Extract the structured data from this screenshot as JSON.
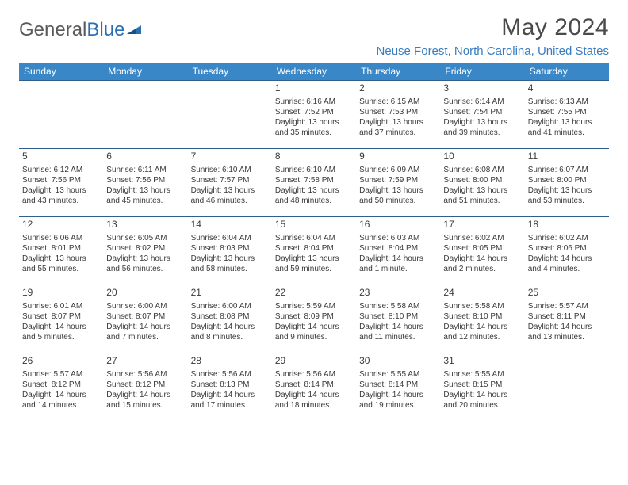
{
  "logo": {
    "text_a": "General",
    "text_b": "Blue"
  },
  "title": "May 2024",
  "location": "Neuse Forest, North Carolina, United States",
  "day_headers": [
    "Sunday",
    "Monday",
    "Tuesday",
    "Wednesday",
    "Thursday",
    "Friday",
    "Saturday"
  ],
  "colors": {
    "header_bg": "#3a87c8",
    "border": "#2f5e8f",
    "location": "#3a7dbf",
    "text": "#3a3a3a"
  },
  "weeks": [
    [
      null,
      null,
      null,
      {
        "n": "1",
        "sr": "Sunrise: 6:16 AM",
        "ss": "Sunset: 7:52 PM",
        "dl1": "Daylight: 13 hours",
        "dl2": "and 35 minutes."
      },
      {
        "n": "2",
        "sr": "Sunrise: 6:15 AM",
        "ss": "Sunset: 7:53 PM",
        "dl1": "Daylight: 13 hours",
        "dl2": "and 37 minutes."
      },
      {
        "n": "3",
        "sr": "Sunrise: 6:14 AM",
        "ss": "Sunset: 7:54 PM",
        "dl1": "Daylight: 13 hours",
        "dl2": "and 39 minutes."
      },
      {
        "n": "4",
        "sr": "Sunrise: 6:13 AM",
        "ss": "Sunset: 7:55 PM",
        "dl1": "Daylight: 13 hours",
        "dl2": "and 41 minutes."
      }
    ],
    [
      {
        "n": "5",
        "sr": "Sunrise: 6:12 AM",
        "ss": "Sunset: 7:56 PM",
        "dl1": "Daylight: 13 hours",
        "dl2": "and 43 minutes."
      },
      {
        "n": "6",
        "sr": "Sunrise: 6:11 AM",
        "ss": "Sunset: 7:56 PM",
        "dl1": "Daylight: 13 hours",
        "dl2": "and 45 minutes."
      },
      {
        "n": "7",
        "sr": "Sunrise: 6:10 AM",
        "ss": "Sunset: 7:57 PM",
        "dl1": "Daylight: 13 hours",
        "dl2": "and 46 minutes."
      },
      {
        "n": "8",
        "sr": "Sunrise: 6:10 AM",
        "ss": "Sunset: 7:58 PM",
        "dl1": "Daylight: 13 hours",
        "dl2": "and 48 minutes."
      },
      {
        "n": "9",
        "sr": "Sunrise: 6:09 AM",
        "ss": "Sunset: 7:59 PM",
        "dl1": "Daylight: 13 hours",
        "dl2": "and 50 minutes."
      },
      {
        "n": "10",
        "sr": "Sunrise: 6:08 AM",
        "ss": "Sunset: 8:00 PM",
        "dl1": "Daylight: 13 hours",
        "dl2": "and 51 minutes."
      },
      {
        "n": "11",
        "sr": "Sunrise: 6:07 AM",
        "ss": "Sunset: 8:00 PM",
        "dl1": "Daylight: 13 hours",
        "dl2": "and 53 minutes."
      }
    ],
    [
      {
        "n": "12",
        "sr": "Sunrise: 6:06 AM",
        "ss": "Sunset: 8:01 PM",
        "dl1": "Daylight: 13 hours",
        "dl2": "and 55 minutes."
      },
      {
        "n": "13",
        "sr": "Sunrise: 6:05 AM",
        "ss": "Sunset: 8:02 PM",
        "dl1": "Daylight: 13 hours",
        "dl2": "and 56 minutes."
      },
      {
        "n": "14",
        "sr": "Sunrise: 6:04 AM",
        "ss": "Sunset: 8:03 PM",
        "dl1": "Daylight: 13 hours",
        "dl2": "and 58 minutes."
      },
      {
        "n": "15",
        "sr": "Sunrise: 6:04 AM",
        "ss": "Sunset: 8:04 PM",
        "dl1": "Daylight: 13 hours",
        "dl2": "and 59 minutes."
      },
      {
        "n": "16",
        "sr": "Sunrise: 6:03 AM",
        "ss": "Sunset: 8:04 PM",
        "dl1": "Daylight: 14 hours",
        "dl2": "and 1 minute."
      },
      {
        "n": "17",
        "sr": "Sunrise: 6:02 AM",
        "ss": "Sunset: 8:05 PM",
        "dl1": "Daylight: 14 hours",
        "dl2": "and 2 minutes."
      },
      {
        "n": "18",
        "sr": "Sunrise: 6:02 AM",
        "ss": "Sunset: 8:06 PM",
        "dl1": "Daylight: 14 hours",
        "dl2": "and 4 minutes."
      }
    ],
    [
      {
        "n": "19",
        "sr": "Sunrise: 6:01 AM",
        "ss": "Sunset: 8:07 PM",
        "dl1": "Daylight: 14 hours",
        "dl2": "and 5 minutes."
      },
      {
        "n": "20",
        "sr": "Sunrise: 6:00 AM",
        "ss": "Sunset: 8:07 PM",
        "dl1": "Daylight: 14 hours",
        "dl2": "and 7 minutes."
      },
      {
        "n": "21",
        "sr": "Sunrise: 6:00 AM",
        "ss": "Sunset: 8:08 PM",
        "dl1": "Daylight: 14 hours",
        "dl2": "and 8 minutes."
      },
      {
        "n": "22",
        "sr": "Sunrise: 5:59 AM",
        "ss": "Sunset: 8:09 PM",
        "dl1": "Daylight: 14 hours",
        "dl2": "and 9 minutes."
      },
      {
        "n": "23",
        "sr": "Sunrise: 5:58 AM",
        "ss": "Sunset: 8:10 PM",
        "dl1": "Daylight: 14 hours",
        "dl2": "and 11 minutes."
      },
      {
        "n": "24",
        "sr": "Sunrise: 5:58 AM",
        "ss": "Sunset: 8:10 PM",
        "dl1": "Daylight: 14 hours",
        "dl2": "and 12 minutes."
      },
      {
        "n": "25",
        "sr": "Sunrise: 5:57 AM",
        "ss": "Sunset: 8:11 PM",
        "dl1": "Daylight: 14 hours",
        "dl2": "and 13 minutes."
      }
    ],
    [
      {
        "n": "26",
        "sr": "Sunrise: 5:57 AM",
        "ss": "Sunset: 8:12 PM",
        "dl1": "Daylight: 14 hours",
        "dl2": "and 14 minutes."
      },
      {
        "n": "27",
        "sr": "Sunrise: 5:56 AM",
        "ss": "Sunset: 8:12 PM",
        "dl1": "Daylight: 14 hours",
        "dl2": "and 15 minutes."
      },
      {
        "n": "28",
        "sr": "Sunrise: 5:56 AM",
        "ss": "Sunset: 8:13 PM",
        "dl1": "Daylight: 14 hours",
        "dl2": "and 17 minutes."
      },
      {
        "n": "29",
        "sr": "Sunrise: 5:56 AM",
        "ss": "Sunset: 8:14 PM",
        "dl1": "Daylight: 14 hours",
        "dl2": "and 18 minutes."
      },
      {
        "n": "30",
        "sr": "Sunrise: 5:55 AM",
        "ss": "Sunset: 8:14 PM",
        "dl1": "Daylight: 14 hours",
        "dl2": "and 19 minutes."
      },
      {
        "n": "31",
        "sr": "Sunrise: 5:55 AM",
        "ss": "Sunset: 8:15 PM",
        "dl1": "Daylight: 14 hours",
        "dl2": "and 20 minutes."
      },
      null
    ]
  ]
}
